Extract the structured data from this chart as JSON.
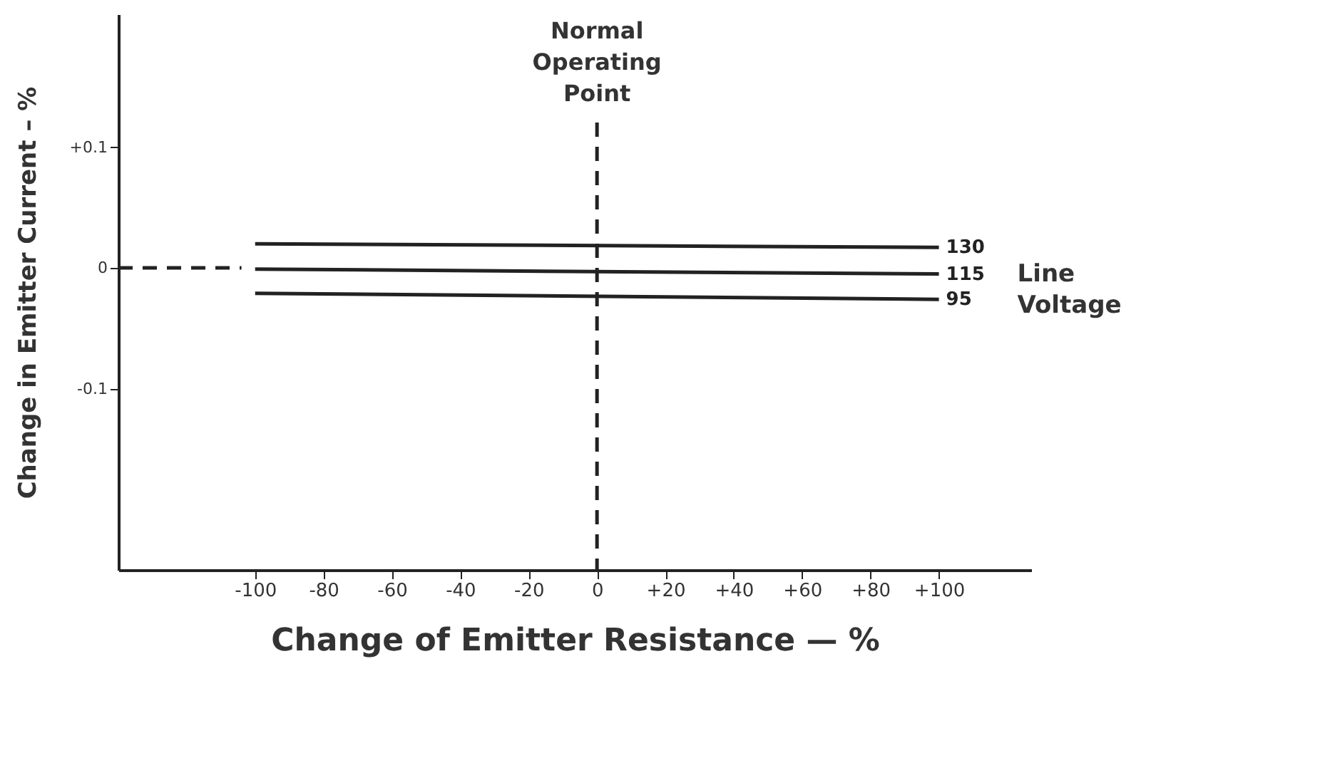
{
  "chart_data": {
    "type": "line",
    "xlabel": "Change of Emitter Resistance — %",
    "ylabel": "Change in Emitter Current – %",
    "xlim": [
      -140,
      127
    ],
    "ylim": [
      -0.25,
      0.21
    ],
    "xticks": [
      -100,
      -80,
      -60,
      -40,
      -20,
      0,
      {
        "value": 20,
        "label": "+20"
      },
      {
        "value": 40,
        "label": "+40"
      },
      {
        "value": 60,
        "label": "+60"
      },
      {
        "value": 80,
        "label": "+80"
      },
      {
        "value": 100,
        "label": "+100"
      }
    ],
    "yticks": [
      {
        "value": 0.1,
        "label": "+0.1"
      },
      0,
      -0.1
    ],
    "grid": false,
    "legend": false,
    "marker": "none",
    "line_style": "solid",
    "series": [
      {
        "name": "130",
        "color": "#222222",
        "x": [
          -100,
          100
        ],
        "values": [
          0.02,
          0.017
        ]
      },
      {
        "name": "115",
        "color": "#222222",
        "x": [
          -100,
          100
        ],
        "values": [
          -0.001,
          -0.005
        ]
      },
      {
        "name": "95",
        "color": "#222222",
        "x": [
          -100,
          100
        ],
        "values": [
          -0.021,
          -0.026
        ]
      },
      {
        "color": "#222222",
        "x": [
          -140,
          -104
        ],
        "values": [
          0,
          0
        ],
        "line_style": "dashed"
      }
    ],
    "ref_lines": [
      {
        "axis": "x",
        "value": 0,
        "label": "Normal Operating Point",
        "line_style": "dashed",
        "color": "#222222"
      }
    ],
    "annotations": [
      "Line Voltage"
    ]
  }
}
